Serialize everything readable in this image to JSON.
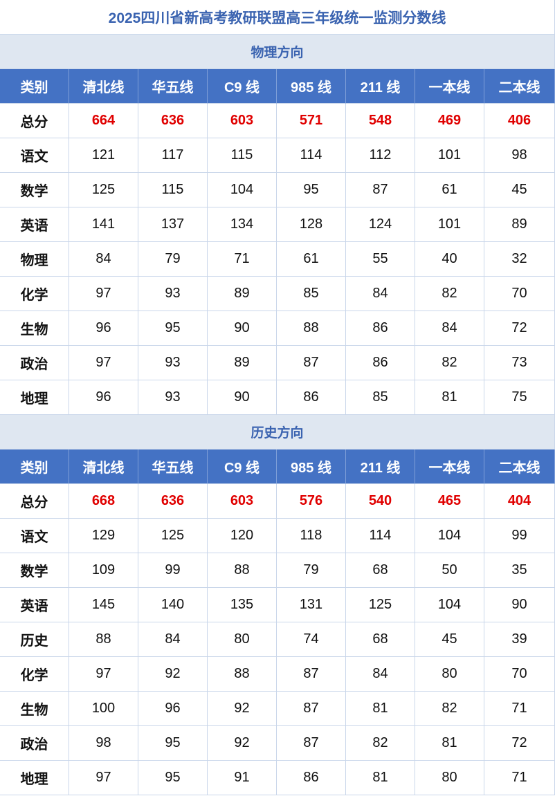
{
  "title": "2025四川省新高考教研联盟高三年级统一监测分数线",
  "sections": [
    {
      "name": "物理方向",
      "header": [
        "类别",
        "清北线",
        "华五线",
        "C9 线",
        "985 线",
        "211 线",
        "一本线",
        "二本线"
      ],
      "rows": [
        {
          "label": "总分",
          "values": [
            664,
            636,
            603,
            571,
            548,
            469,
            406
          ]
        },
        {
          "label": "语文",
          "values": [
            121,
            117,
            115,
            114,
            112,
            101,
            98
          ]
        },
        {
          "label": "数学",
          "values": [
            125,
            115,
            104,
            95,
            87,
            61,
            45
          ]
        },
        {
          "label": "英语",
          "values": [
            141,
            137,
            134,
            128,
            124,
            101,
            89
          ]
        },
        {
          "label": "物理",
          "values": [
            84,
            79,
            71,
            61,
            55,
            40,
            32
          ]
        },
        {
          "label": "化学",
          "values": [
            97,
            93,
            89,
            85,
            84,
            82,
            70
          ]
        },
        {
          "label": "生物",
          "values": [
            96,
            95,
            90,
            88,
            86,
            84,
            72
          ]
        },
        {
          "label": "政治",
          "values": [
            97,
            93,
            89,
            87,
            86,
            82,
            73
          ]
        },
        {
          "label": "地理",
          "values": [
            96,
            93,
            90,
            86,
            85,
            81,
            75
          ]
        }
      ]
    },
    {
      "name": "历史方向",
      "header": [
        "类别",
        "清北线",
        "华五线",
        "C9 线",
        "985 线",
        "211 线",
        "一本线",
        "二本线"
      ],
      "rows": [
        {
          "label": "总分",
          "values": [
            668,
            636,
            603,
            576,
            540,
            465,
            404
          ]
        },
        {
          "label": "语文",
          "values": [
            129,
            125,
            120,
            118,
            114,
            104,
            99
          ]
        },
        {
          "label": "数学",
          "values": [
            109,
            99,
            88,
            79,
            68,
            50,
            35
          ]
        },
        {
          "label": "英语",
          "values": [
            145,
            140,
            135,
            131,
            125,
            104,
            90
          ]
        },
        {
          "label": "历史",
          "values": [
            88,
            84,
            80,
            74,
            68,
            45,
            39
          ]
        },
        {
          "label": "化学",
          "values": [
            97,
            92,
            88,
            87,
            84,
            80,
            70
          ]
        },
        {
          "label": "生物",
          "values": [
            100,
            96,
            92,
            87,
            81,
            82,
            71
          ]
        },
        {
          "label": "政治",
          "values": [
            98,
            95,
            92,
            87,
            82,
            81,
            72
          ]
        },
        {
          "label": "地理",
          "values": [
            97,
            95,
            91,
            86,
            81,
            80,
            71
          ]
        }
      ]
    }
  ]
}
